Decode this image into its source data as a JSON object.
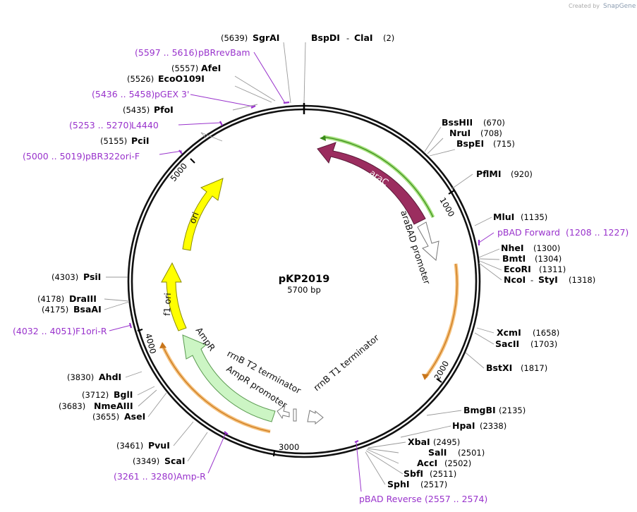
{
  "credit": {
    "created_by": "Created by",
    "brand": "SnapGene"
  },
  "plasmid": {
    "name": "pKP2019",
    "size_label": "5700 bp",
    "length": 5700
  },
  "ticks": [
    "1000",
    "2000",
    "3000",
    "4000",
    "5000"
  ],
  "enzymes": [
    {
      "name": "SgrAI",
      "pos": "(5639)"
    },
    {
      "name": "AfeI",
      "pos": "(5557)"
    },
    {
      "name": "EcoO109I",
      "pos": "(5526)"
    },
    {
      "name": "PfoI",
      "pos": "(5435)"
    },
    {
      "name": "PciI",
      "pos": "(5155)"
    },
    {
      "name": "PsiI",
      "pos": "(4303)"
    },
    {
      "name": "DraIII",
      "pos": "(4178)"
    },
    {
      "name": "BsaAI",
      "pos": "(4175)"
    },
    {
      "name": "AhdI",
      "pos": "(3830)"
    },
    {
      "name": "BglI",
      "pos": "(3712)"
    },
    {
      "name": "NmeAIII",
      "pos": "(3683)"
    },
    {
      "name": "AseI",
      "pos": "(3655)"
    },
    {
      "name": "PvuI",
      "pos": "(3461)"
    },
    {
      "name": "ScaI",
      "pos": "(3349)"
    },
    {
      "name": "BssHII",
      "pos": "(670)"
    },
    {
      "name": "NruI",
      "pos": "(708)"
    },
    {
      "name": "BspEI",
      "pos": "(715)"
    },
    {
      "name": "PflMI",
      "pos": "(920)"
    },
    {
      "name": "MluI",
      "pos": "(1135)"
    },
    {
      "name": "NheI",
      "pos": "(1300)"
    },
    {
      "name": "BmtI",
      "pos": "(1304)"
    },
    {
      "name": "EcoRI",
      "pos": "(1311)"
    },
    {
      "name": "XcmI",
      "pos": "(1658)"
    },
    {
      "name": "SacII",
      "pos": "(1703)"
    },
    {
      "name": "BstXI",
      "pos": "(1817)"
    },
    {
      "name": "BmgBI",
      "pos": "(2135)"
    },
    {
      "name": "HpaI",
      "pos": "(2338)"
    },
    {
      "name": "XbaI",
      "pos": "(2495)"
    },
    {
      "name": "SalI",
      "pos": "(2501)"
    },
    {
      "name": "AccI",
      "pos": "(2502)"
    },
    {
      "name": "SbfI",
      "pos": "(2511)"
    },
    {
      "name": "SphI",
      "pos": "(2517)"
    }
  ],
  "enzyme_pairs": [
    {
      "a": "BspDI",
      "sep": "-",
      "b": "ClaI",
      "pos": "(2)"
    },
    {
      "a": "NcoI",
      "sep": "-",
      "b": "StyI",
      "pos": "(1318)"
    }
  ],
  "primers": [
    {
      "range": "(5597 .. 5616)",
      "name": "pBRrevBam"
    },
    {
      "range": "(5436 .. 5458)",
      "name": "pGEX 3'"
    },
    {
      "range": "(5253 .. 5270)",
      "name": "L4440"
    },
    {
      "range": "(5000 .. 5019)",
      "name": "pBR322ori-F"
    },
    {
      "range": "(4032 .. 4051)",
      "name": "F1ori-R"
    },
    {
      "range": "(3261 .. 3280)",
      "name": "Amp-R"
    },
    {
      "name": "pBAD Forward",
      "range": "(1208 .. 1227)"
    },
    {
      "name": "pBAD Reverse",
      "range": "(2557 .. 2574)"
    }
  ],
  "features": [
    {
      "name": "araC",
      "color": "#9b2d5f"
    },
    {
      "name": "araBAD promoter",
      "color": "#ffffff"
    },
    {
      "name": "ori",
      "color": "#ffff00"
    },
    {
      "name": "f1 ori",
      "color": "#ffff00"
    },
    {
      "name": "AmpR",
      "color": "#ccf5c4"
    },
    {
      "name": "AmpR promoter",
      "color": "#ffffff"
    },
    {
      "name": "rrnB T2 terminator",
      "color": "#ffffff"
    },
    {
      "name": "rrnB T1 terminator",
      "color": "#ffffff"
    }
  ],
  "colors": {
    "primer": "#9933cc",
    "backbone": "#111111",
    "highlight_green": "#a6e27e",
    "highlight_orange": "#f5c07a"
  }
}
